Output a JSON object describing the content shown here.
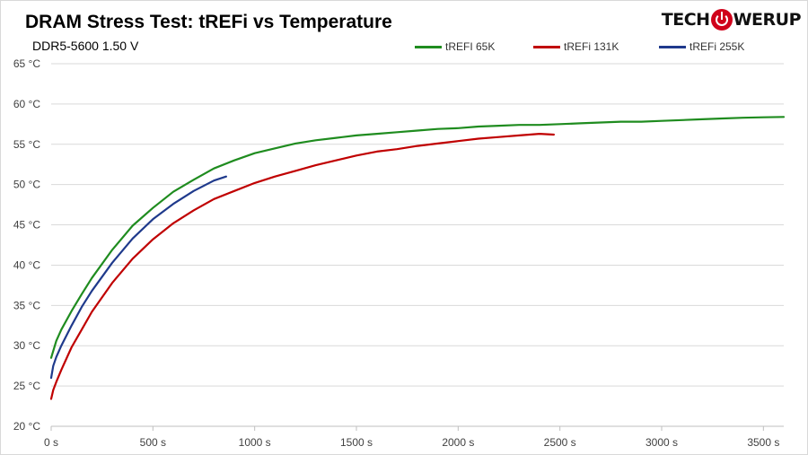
{
  "logo": {
    "left_text": "TECH",
    "right_text": "WERUP"
  },
  "chart_data": {
    "type": "line",
    "title": "DRAM Stress Test: tREFi vs Temperature",
    "subtitle": "DDR5-5600 1.50 V",
    "xlabel": "",
    "ylabel": "",
    "xlim": [
      0,
      3600
    ],
    "ylim": [
      20,
      65
    ],
    "x_unit": " s",
    "y_unit": " °C",
    "x_ticks": [
      "0 s",
      "500 s",
      "1000 s",
      "1500 s",
      "2000 s",
      "2500 s",
      "3000 s",
      "3500 s"
    ],
    "y_ticks": [
      "20 °C",
      "25 °C",
      "30 °C",
      "35 °C",
      "40 °C",
      "45 °C",
      "50 °C",
      "55 °C",
      "60 °C",
      "65 °C"
    ],
    "x_tick_values": [
      0,
      500,
      1000,
      1500,
      2000,
      2500,
      3000,
      3500
    ],
    "y_tick_values": [
      20,
      25,
      30,
      35,
      40,
      45,
      50,
      55,
      60,
      65
    ],
    "grid": true,
    "legend": "top-right",
    "series": [
      {
        "name": "tREFI 65K",
        "color": "#1f8c1f",
        "x": [
          0,
          25,
          50,
          100,
          150,
          200,
          300,
          400,
          500,
          600,
          700,
          800,
          900,
          1000,
          1100,
          1200,
          1300,
          1400,
          1500,
          1600,
          1700,
          1800,
          1900,
          2000,
          2100,
          2200,
          2300,
          2400,
          2500,
          2600,
          2700,
          2800,
          2900,
          3000,
          3100,
          3200,
          3300,
          3400,
          3500,
          3600
        ],
        "y": [
          28.5,
          30.6,
          32.0,
          34.3,
          36.4,
          38.4,
          41.9,
          44.9,
          47.1,
          49.1,
          50.6,
          52.0,
          53.0,
          53.9,
          54.5,
          55.1,
          55.5,
          55.8,
          56.1,
          56.3,
          56.5,
          56.7,
          56.9,
          57.0,
          57.2,
          57.3,
          57.4,
          57.4,
          57.5,
          57.6,
          57.7,
          57.8,
          57.8,
          57.9,
          58.0,
          58.1,
          58.2,
          58.3,
          58.35,
          58.4
        ]
      },
      {
        "name": "tREFi 131K",
        "color": "#c00000",
        "x": [
          0,
          10,
          25,
          50,
          100,
          150,
          200,
          300,
          400,
          500,
          600,
          700,
          800,
          900,
          1000,
          1100,
          1200,
          1300,
          1400,
          1500,
          1600,
          1700,
          1800,
          1900,
          2000,
          2100,
          2200,
          2300,
          2400,
          2470
        ],
        "y": [
          23.4,
          24.5,
          25.5,
          27.0,
          29.8,
          32.0,
          34.2,
          37.8,
          40.8,
          43.2,
          45.2,
          46.8,
          48.2,
          49.2,
          50.2,
          51.0,
          51.7,
          52.4,
          53.0,
          53.6,
          54.1,
          54.4,
          54.8,
          55.1,
          55.4,
          55.7,
          55.9,
          56.1,
          56.3,
          56.2
        ]
      },
      {
        "name": "tREFi 255K",
        "color": "#1f3a8c",
        "x": [
          0,
          10,
          25,
          50,
          100,
          150,
          200,
          300,
          400,
          500,
          600,
          700,
          800,
          860
        ],
        "y": [
          26.0,
          27.5,
          28.6,
          30.0,
          32.5,
          34.8,
          36.8,
          40.3,
          43.3,
          45.7,
          47.6,
          49.2,
          50.5,
          51.0
        ]
      }
    ]
  }
}
